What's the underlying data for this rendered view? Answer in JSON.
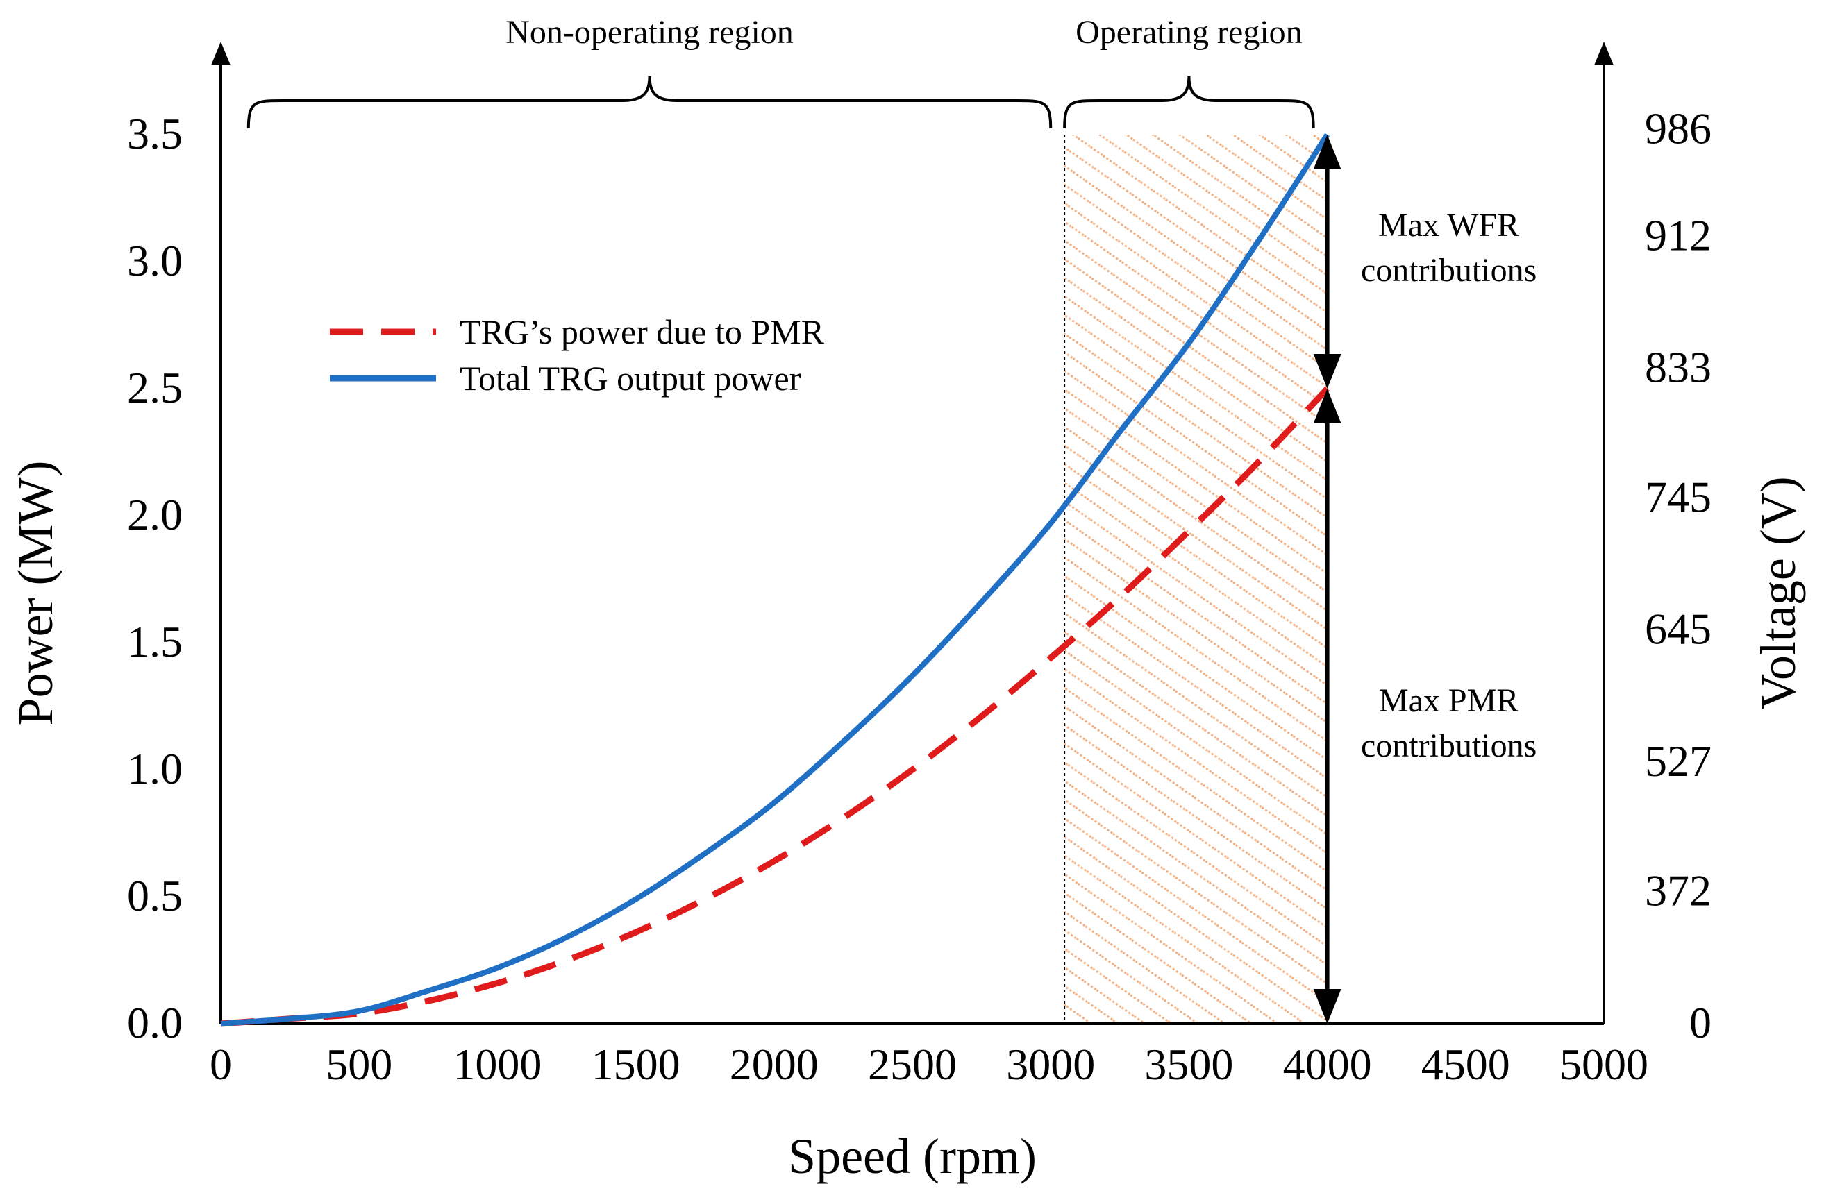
{
  "chart_data": {
    "type": "line",
    "xlabel": "Speed (rpm)",
    "ylabel": "Power (MW)",
    "y2label": "Voltage (V)",
    "xlim": [
      0,
      5000
    ],
    "ylim": [
      0,
      3.5
    ],
    "x_ticks": [
      "0",
      "500",
      "1000",
      "1500",
      "2000",
      "2500",
      "3000",
      "3500",
      "4000",
      "4500",
      "5000"
    ],
    "y_ticks": [
      "0.0",
      "0.5",
      "1.0",
      "1.5",
      "2.0",
      "2.5",
      "3.0",
      "3.5"
    ],
    "y2_ticks": [
      {
        "label": "0",
        "power": 0.0
      },
      {
        "label": "372",
        "power": 0.52
      },
      {
        "label": "527",
        "power": 1.03
      },
      {
        "label": "645",
        "power": 1.55
      },
      {
        "label": "745",
        "power": 2.07
      },
      {
        "label": "833",
        "power": 2.58
      },
      {
        "label": "912",
        "power": 3.1
      },
      {
        "label": "986",
        "power": 3.52
      }
    ],
    "grid": false,
    "legend_position": "upper-left",
    "series": [
      {
        "name": "TRG’s power due to PMR",
        "style": "dashed",
        "color": "#e01b1b",
        "x": [
          0,
          250,
          500,
          750,
          1000,
          1250,
          1500,
          1750,
          2000,
          2250,
          2500,
          2750,
          3000,
          3250,
          3500,
          3750,
          4000
        ],
        "y": [
          0.0,
          0.02,
          0.04,
          0.09,
          0.16,
          0.25,
          0.36,
          0.49,
          0.64,
          0.81,
          1.0,
          1.21,
          1.44,
          1.68,
          1.94,
          2.21,
          2.5
        ]
      },
      {
        "name": "Total TRG output power",
        "style": "solid",
        "color": "#1f6fc5",
        "x": [
          0,
          250,
          500,
          750,
          1000,
          1250,
          1500,
          1750,
          2000,
          2250,
          2500,
          2750,
          3000,
          3250,
          3500,
          3750,
          4000
        ],
        "y": [
          0.0,
          0.02,
          0.05,
          0.13,
          0.22,
          0.34,
          0.49,
          0.67,
          0.87,
          1.11,
          1.37,
          1.66,
          1.97,
          2.33,
          2.68,
          3.08,
          3.5
        ]
      }
    ],
    "regions": [
      {
        "label": "Non-operating region",
        "x_start": 100,
        "x_end": 3000
      },
      {
        "label": "Operating region",
        "x_start": 3050,
        "x_end": 3950,
        "hatch_color": "#f4b183"
      }
    ],
    "operating_boundary_x": 3050,
    "arrow_x": 4000,
    "annotations": [
      {
        "lines": [
          "Max WFR",
          "contributions"
        ],
        "from_y": 2.5,
        "to_y": 3.5
      },
      {
        "lines": [
          "Max PMR",
          "contributions"
        ],
        "from_y": 0.0,
        "to_y": 2.5
      }
    ]
  }
}
